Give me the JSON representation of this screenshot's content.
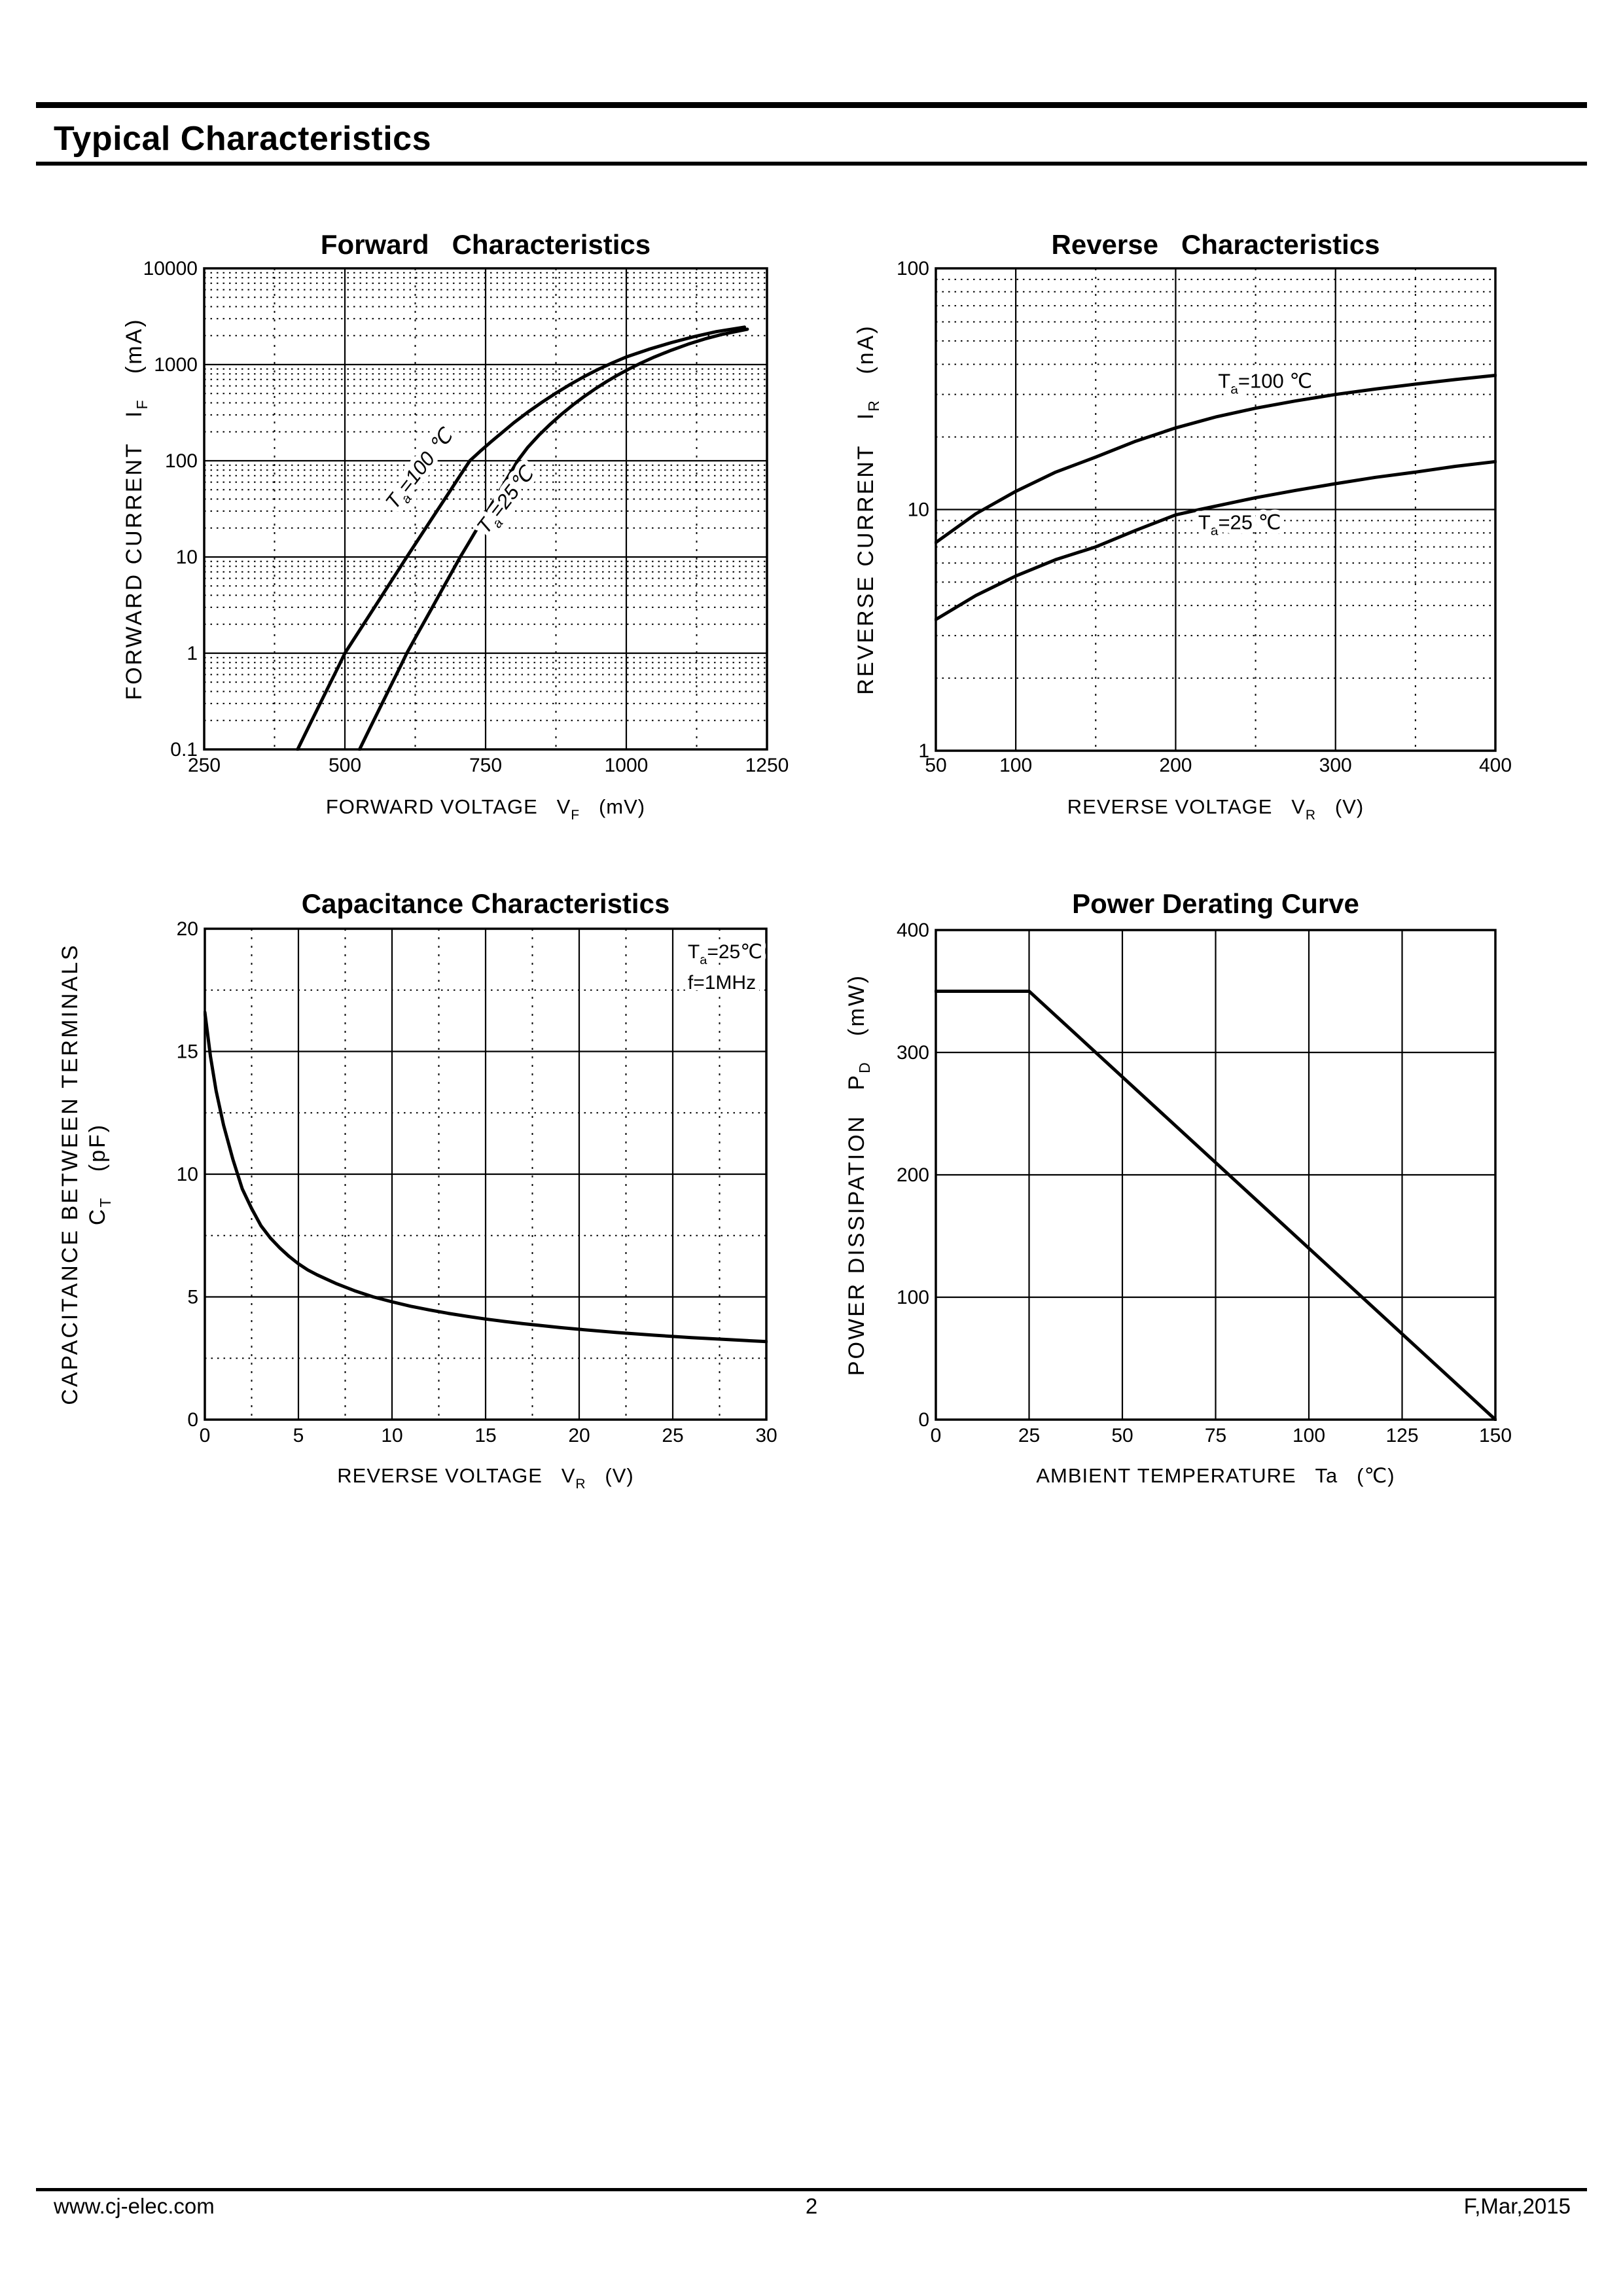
{
  "colors": {
    "ink": "#000000",
    "paper": "#ffffff"
  },
  "page": {
    "header": {
      "title": "Typical Characteristics"
    },
    "footer": {
      "website": "www.cj-elec.com",
      "page_number": "2",
      "revision": "F,Mar,2015"
    }
  },
  "chart_data": [
    {
      "id": "forward",
      "type": "line",
      "title": "Forward   Characteristics",
      "x": {
        "scale": "linear",
        "min": 250,
        "max": 1250,
        "ticks": [
          250,
          500,
          750,
          1000,
          1250
        ],
        "majors": [
          500,
          750,
          1000
        ],
        "minors": [
          375,
          625,
          875,
          1125
        ],
        "label_parts": [
          [
            "FORWARD VOLTAGE   V",
            false
          ],
          [
            "F",
            true
          ],
          [
            "   (mV)",
            false
          ]
        ]
      },
      "y": {
        "scale": "log",
        "min": 0.1,
        "max": 10000,
        "ticks": [
          0.1,
          1,
          10,
          100,
          1000,
          10000
        ],
        "majors": [
          1,
          10,
          100,
          1000
        ],
        "minors": "log-decades",
        "label_lines": [
          [
            [
              "FORWARD CURRENT   I",
              false
            ],
            [
              "F",
              true
            ],
            [
              "   (mA)",
              false
            ]
          ]
        ]
      },
      "series": [
        {
          "name": "Ta=100C",
          "points": [
            [
              416,
              0.1
            ],
            [
              430,
              0.147
            ],
            [
              445,
              0.222
            ],
            [
              460,
              0.334
            ],
            [
              475,
              0.503
            ],
            [
              490,
              0.757
            ],
            [
              500,
              1
            ],
            [
              515,
              1.37
            ],
            [
              530,
              1.87
            ],
            [
              545,
              2.56
            ],
            [
              560,
              3.5
            ],
            [
              575,
              4.8
            ],
            [
              590,
              6.57
            ],
            [
              610,
              10
            ],
            [
              630,
              15.1
            ],
            [
              650,
              22.8
            ],
            [
              670,
              34.3
            ],
            [
              690,
              51.8
            ],
            [
              705,
              70.7
            ],
            [
              722,
              100
            ],
            [
              740,
              125
            ],
            [
              760,
              158
            ],
            [
              780,
              198
            ],
            [
              800,
              248
            ],
            [
              825,
              320
            ],
            [
              850,
              405
            ],
            [
              875,
              505
            ],
            [
              900,
              620
            ],
            [
              925,
              750
            ],
            [
              950,
              890
            ],
            [
              975,
              1040
            ],
            [
              1000,
              1200
            ],
            [
              1040,
              1440
            ],
            [
              1080,
              1690
            ],
            [
              1120,
              1950
            ],
            [
              1160,
              2200
            ],
            [
              1210,
              2450
            ]
          ]
        },
        {
          "name": "Ta=25C",
          "points": [
            [
              526,
              0.1
            ],
            [
              540,
              0.147
            ],
            [
              555,
              0.222
            ],
            [
              570,
              0.334
            ],
            [
              585,
              0.503
            ],
            [
              600,
              0.757
            ],
            [
              610,
              1
            ],
            [
              625,
              1.44
            ],
            [
              640,
              2.07
            ],
            [
              655,
              2.97
            ],
            [
              670,
              4.28
            ],
            [
              685,
              6.16
            ],
            [
              705,
              10
            ],
            [
              720,
              14
            ],
            [
              735,
              19.7
            ],
            [
              750,
              27.6
            ],
            [
              765,
              38.7
            ],
            [
              780,
              54.3
            ],
            [
              795,
              76.2
            ],
            [
              807,
              100
            ],
            [
              825,
              138
            ],
            [
              845,
              185
            ],
            [
              865,
              240
            ],
            [
              885,
              305
            ],
            [
              905,
              380
            ],
            [
              925,
              465
            ],
            [
              945,
              560
            ],
            [
              965,
              665
            ],
            [
              985,
              780
            ],
            [
              1005,
              900
            ],
            [
              1025,
              1030
            ],
            [
              1050,
              1200
            ],
            [
              1080,
              1410
            ],
            [
              1110,
              1630
            ],
            [
              1140,
              1850
            ],
            [
              1170,
              2060
            ],
            [
              1215,
              2330
            ]
          ]
        }
      ],
      "annotations": [
        {
          "x": 641,
          "y": 74,
          "rotate": -52,
          "italic": true,
          "anchor": "middle",
          "parts": [
            [
              "T",
              false
            ],
            [
              "a",
              true
            ],
            [
              "=100 ℃",
              false
            ]
          ]
        },
        {
          "x": 794,
          "y": 35,
          "rotate": -52,
          "italic": true,
          "anchor": "middle",
          "parts": [
            [
              "T",
              false
            ],
            [
              "a",
              true
            ],
            [
              "=25℃",
              false
            ]
          ]
        }
      ]
    },
    {
      "id": "reverse",
      "type": "line",
      "title": "Reverse   Characteristics",
      "x": {
        "scale": "linear",
        "min": 50,
        "max": 400,
        "ticks": [
          50,
          100,
          200,
          300,
          400
        ],
        "majors": [
          100,
          200,
          300
        ],
        "minors": [
          150,
          250,
          350
        ],
        "label_parts": [
          [
            "REVERSE VOLTAGE   V",
            false
          ],
          [
            "R",
            true
          ],
          [
            "   (V)",
            false
          ]
        ]
      },
      "y": {
        "scale": "log",
        "min": 1,
        "max": 100,
        "ticks": [
          1,
          10,
          100
        ],
        "majors": [
          10
        ],
        "minors": "log-decades",
        "label_lines": [
          [
            [
              "REVERSE CURRENT   I",
              false
            ],
            [
              "R",
              true
            ],
            [
              "   (nA)",
              false
            ]
          ]
        ]
      },
      "series": [
        {
          "name": "Ta=100C",
          "points": [
            [
              50,
              7.3
            ],
            [
              75,
              9.6
            ],
            [
              100,
              11.9
            ],
            [
              125,
              14.3
            ],
            [
              150,
              16.5
            ],
            [
              175,
              19.2
            ],
            [
              200,
              21.8
            ],
            [
              225,
              24.2
            ],
            [
              250,
              26.3
            ],
            [
              275,
              28.2
            ],
            [
              300,
              30
            ],
            [
              325,
              31.6
            ],
            [
              350,
              33.1
            ],
            [
              375,
              34.6
            ],
            [
              400,
              36
            ]
          ]
        },
        {
          "name": "Ta=25C",
          "points": [
            [
              50,
              3.5
            ],
            [
              75,
              4.4
            ],
            [
              100,
              5.3
            ],
            [
              125,
              6.2
            ],
            [
              150,
              7
            ],
            [
              175,
              8.2
            ],
            [
              200,
              9.5
            ],
            [
              215,
              10
            ],
            [
              250,
              11.2
            ],
            [
              275,
              12
            ],
            [
              300,
              12.8
            ],
            [
              325,
              13.6
            ],
            [
              350,
              14.3
            ],
            [
              375,
              15.1
            ],
            [
              400,
              15.8
            ]
          ]
        }
      ],
      "annotations": [
        {
          "x": 256,
          "y": 32,
          "rotate": 0,
          "italic": false,
          "anchor": "middle",
          "parts": [
            [
              "T",
              false
            ],
            [
              "a",
              true
            ],
            [
              "=100 ℃",
              false
            ]
          ]
        },
        {
          "x": 240,
          "y": 8.3,
          "rotate": 0,
          "italic": false,
          "anchor": "middle",
          "parts": [
            [
              "T",
              false
            ],
            [
              "a",
              true
            ],
            [
              "=25 ℃",
              false
            ]
          ]
        }
      ]
    },
    {
      "id": "capacitance",
      "type": "line",
      "title": "Capacitance Characteristics",
      "x": {
        "scale": "linear",
        "min": 0,
        "max": 30,
        "ticks": [
          0,
          5,
          10,
          15,
          20,
          25,
          30
        ],
        "majors": [
          5,
          10,
          15,
          20,
          25
        ],
        "minors": [
          2.5,
          7.5,
          12.5,
          17.5,
          22.5,
          27.5
        ],
        "label_parts": [
          [
            "REVERSE VOLTAGE   V",
            false
          ],
          [
            "R",
            true
          ],
          [
            "   (V)",
            false
          ]
        ]
      },
      "y": {
        "scale": "linear",
        "min": 0,
        "max": 20,
        "ticks": [
          0,
          5,
          10,
          15,
          20
        ],
        "majors": [
          5,
          10,
          15
        ],
        "minors": [
          2.5,
          7.5,
          12.5,
          17.5
        ],
        "label_lines": [
          [
            [
              "CAPACITANCE BETWEEN TERMINALS",
              false
            ]
          ],
          [
            [
              "C",
              false
            ],
            [
              "T",
              true
            ],
            [
              "   (pF)",
              false
            ]
          ]
        ]
      },
      "series": [
        {
          "name": "Ta=25C f=1MHz",
          "points": [
            [
              0,
              16.6
            ],
            [
              0.3,
              14.8
            ],
            [
              0.6,
              13.4
            ],
            [
              1,
              12
            ],
            [
              1.5,
              10.6
            ],
            [
              2,
              9.4
            ],
            [
              2.5,
              8.6
            ],
            [
              3,
              7.9
            ],
            [
              3.5,
              7.4
            ],
            [
              4,
              7
            ],
            [
              4.5,
              6.65
            ],
            [
              5,
              6.35
            ],
            [
              5.5,
              6.1
            ],
            [
              6,
              5.9
            ],
            [
              7,
              5.55
            ],
            [
              8,
              5.25
            ],
            [
              9,
              5
            ],
            [
              10,
              4.8
            ],
            [
              11,
              4.62
            ],
            [
              12,
              4.47
            ],
            [
              13,
              4.33
            ],
            [
              14,
              4.21
            ],
            [
              15,
              4.1
            ],
            [
              16,
              4
            ],
            [
              17,
              3.91
            ],
            [
              18,
              3.83
            ],
            [
              19,
              3.75
            ],
            [
              20,
              3.68
            ],
            [
              22,
              3.55
            ],
            [
              24,
              3.44
            ],
            [
              26,
              3.34
            ],
            [
              28,
              3.26
            ],
            [
              30,
              3.18
            ]
          ]
        }
      ],
      "annotations": [
        {
          "x": 25.8,
          "y": 18.8,
          "rotate": 0,
          "italic": false,
          "anchor": "start",
          "parts": [
            [
              "T",
              false
            ],
            [
              "a",
              true
            ],
            [
              "=25℃",
              false
            ]
          ]
        },
        {
          "x": 25.8,
          "y": 17.55,
          "rotate": 0,
          "italic": false,
          "anchor": "start",
          "parts": [
            [
              "f=1MHz",
              false
            ]
          ]
        }
      ]
    },
    {
      "id": "power",
      "type": "line",
      "title": "Power Derating Curve",
      "x": {
        "scale": "linear",
        "min": 0,
        "max": 150,
        "ticks": [
          0,
          25,
          50,
          75,
          100,
          125,
          150
        ],
        "majors": [
          25,
          50,
          75,
          100,
          125
        ],
        "minors": [],
        "label_parts": [
          [
            "AMBIENT TEMPERATURE   Ta   (℃)",
            false
          ]
        ]
      },
      "y": {
        "scale": "linear",
        "min": 0,
        "max": 400,
        "ticks": [
          0,
          100,
          200,
          300,
          400
        ],
        "majors": [
          100,
          200,
          300
        ],
        "minors": [],
        "label_lines": [
          [
            [
              "POWER DISSIPATION   P",
              false
            ],
            [
              "D",
              true
            ],
            [
              "   (mW)",
              false
            ]
          ]
        ]
      },
      "series": [
        {
          "name": "derating",
          "points": [
            [
              0,
              350
            ],
            [
              25,
              350
            ],
            [
              150,
              0
            ]
          ]
        }
      ],
      "annotations": []
    }
  ]
}
